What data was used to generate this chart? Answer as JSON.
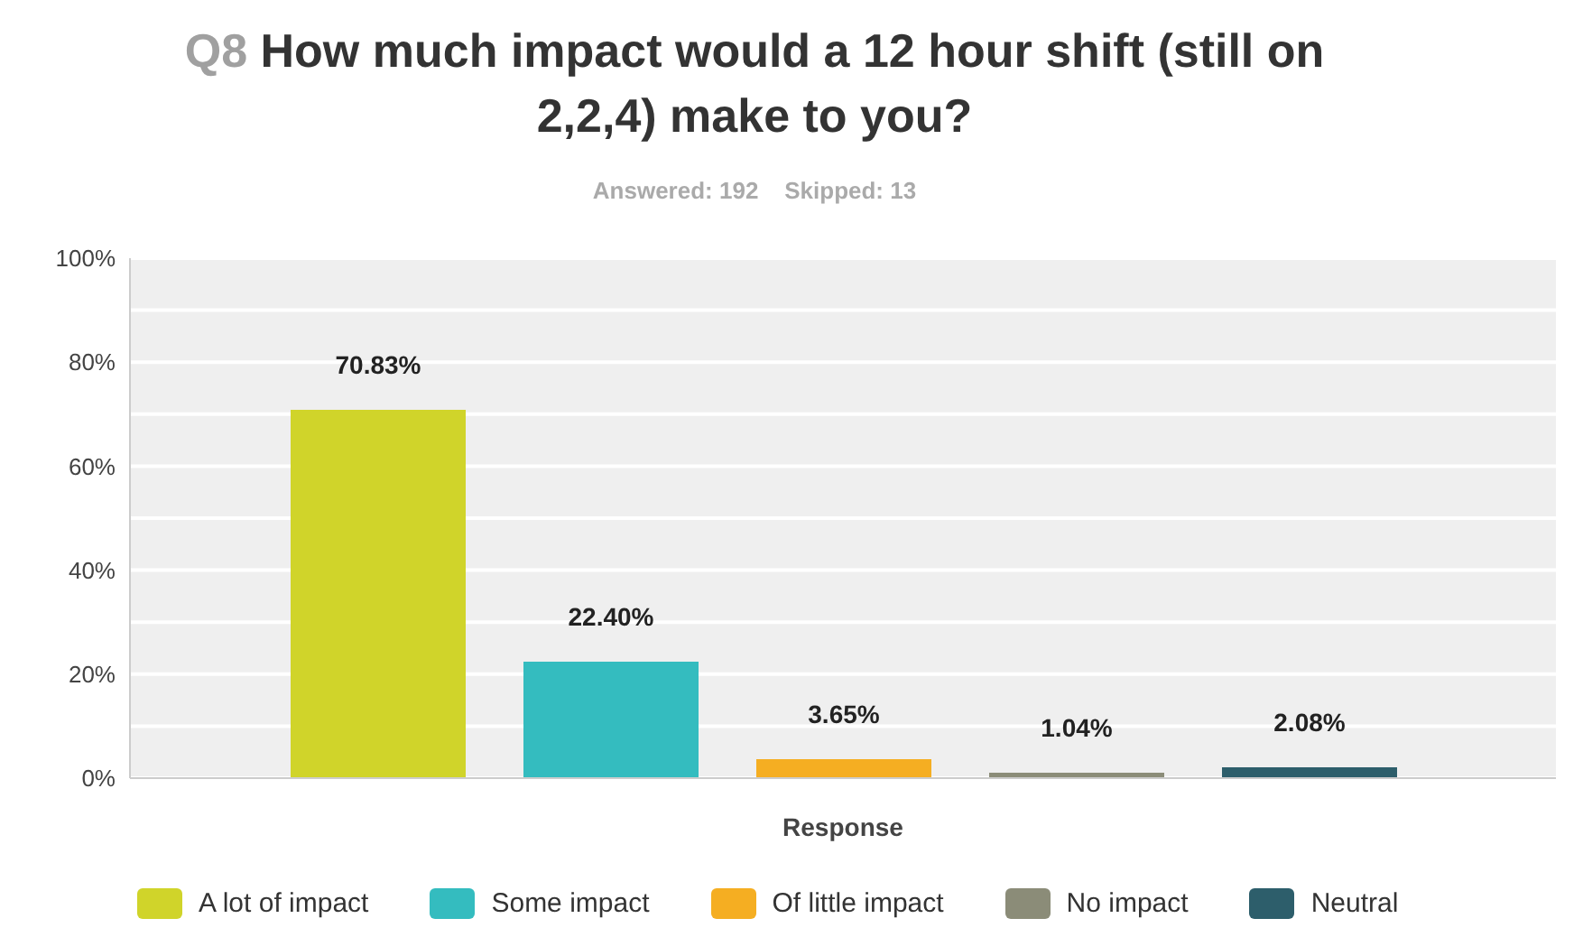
{
  "chart_data": {
    "type": "bar",
    "title": "Q8 How much impact would a 12 hour shift (still on 2,2,4) make to you?",
    "subtitle": "Answered: 192    Skipped: 13",
    "xlabel": "Response",
    "categories": [
      null
    ],
    "series": [
      {
        "name": "A lot of impact",
        "color": "#d0d42a",
        "values": [
          70.83
        ],
        "value_labels": [
          "70.83%"
        ]
      },
      {
        "name": "Some impact",
        "color": "#34bcbf",
        "values": [
          22.4
        ],
        "value_labels": [
          "22.40%"
        ]
      },
      {
        "name": "Of little impact",
        "color": "#f5ae22",
        "values": [
          3.65
        ],
        "value_labels": [
          "3.65%"
        ]
      },
      {
        "name": "No impact",
        "color": "#8b8c78",
        "values": [
          1.04
        ],
        "value_labels": [
          "1.04%"
        ]
      },
      {
        "name": "Neutral",
        "color": "#2d5e6b",
        "values": [
          2.08
        ],
        "value_labels": [
          "2.08%"
        ]
      }
    ],
    "ylim": [
      0,
      100
    ],
    "yticks": [
      {
        "value": 0,
        "label": "0%"
      },
      {
        "value": 10,
        "label": null
      },
      {
        "value": 20,
        "label": "20%"
      },
      {
        "value": 30,
        "label": null
      },
      {
        "value": 40,
        "label": "40%"
      },
      {
        "value": 50,
        "label": null
      },
      {
        "value": 60,
        "label": "60%"
      },
      {
        "value": 70,
        "label": null
      },
      {
        "value": 80,
        "label": "80%"
      },
      {
        "value": 90,
        "label": null
      },
      {
        "value": 100,
        "label": "100%"
      }
    ],
    "grid": "y",
    "legend": "bottom"
  }
}
